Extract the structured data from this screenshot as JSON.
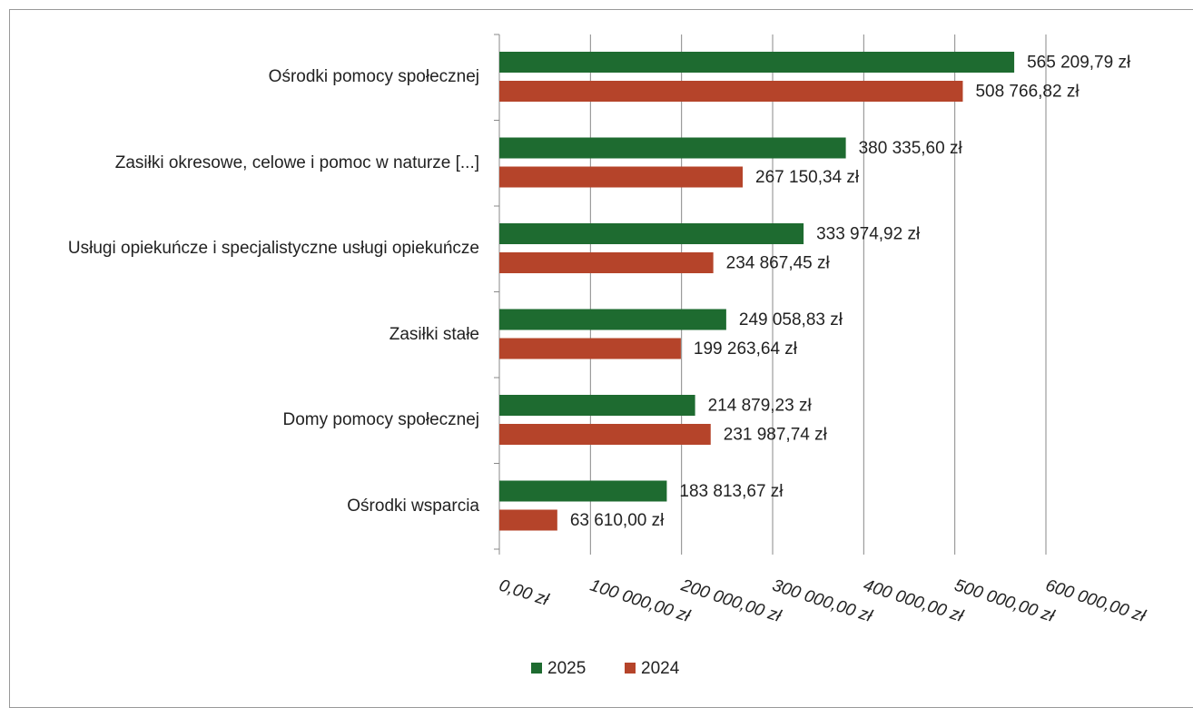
{
  "chart_data": {
    "type": "bar",
    "orientation": "horizontal",
    "categories": [
      "Ośrodki pomocy społecznej",
      "Zasiłki okresowe, celowe i pomoc w naturze [...]",
      "Usługi opiekuńcze i specjalistyczne usługi opiekuńcze",
      "Zasiłki stałe",
      "Domy pomocy społecznej",
      "Ośrodki wsparcia"
    ],
    "series": [
      {
        "name": "2025",
        "color": "#1e6b30",
        "values": [
          565209.79,
          380335.6,
          333974.92,
          249058.83,
          214879.23,
          183813.67
        ],
        "value_labels": [
          "565 209,79 zł",
          "380 335,60 zł",
          "333 974,92 zł",
          "249 058,83 zł",
          "214 879,23 zł",
          "183 813,67 zł"
        ]
      },
      {
        "name": "2024",
        "color": "#b5442a",
        "values": [
          508766.82,
          267150.34,
          234867.45,
          199263.64,
          231987.74,
          63610.0
        ],
        "value_labels": [
          "508 766,82 zł",
          "267 150,34 zł",
          "234 867,45 zł",
          "199 263,64 zł",
          "231 987,74 zł",
          "63 610,00 zł"
        ]
      }
    ],
    "xlim": [
      0,
      600000
    ],
    "xticks": [
      {
        "value": 0,
        "label": "0,00 zł"
      },
      {
        "value": 100000,
        "label": "100 000,00 zł"
      },
      {
        "value": 200000,
        "label": "200 000,00 zł"
      },
      {
        "value": 300000,
        "label": "300 000,00 zł"
      },
      {
        "value": 400000,
        "label": "400 000,00 zł"
      },
      {
        "value": 500000,
        "label": "500 000,00 zł"
      },
      {
        "value": 600000,
        "label": "600 000,00 zł"
      }
    ],
    "grid": true,
    "legend": "bottom"
  }
}
